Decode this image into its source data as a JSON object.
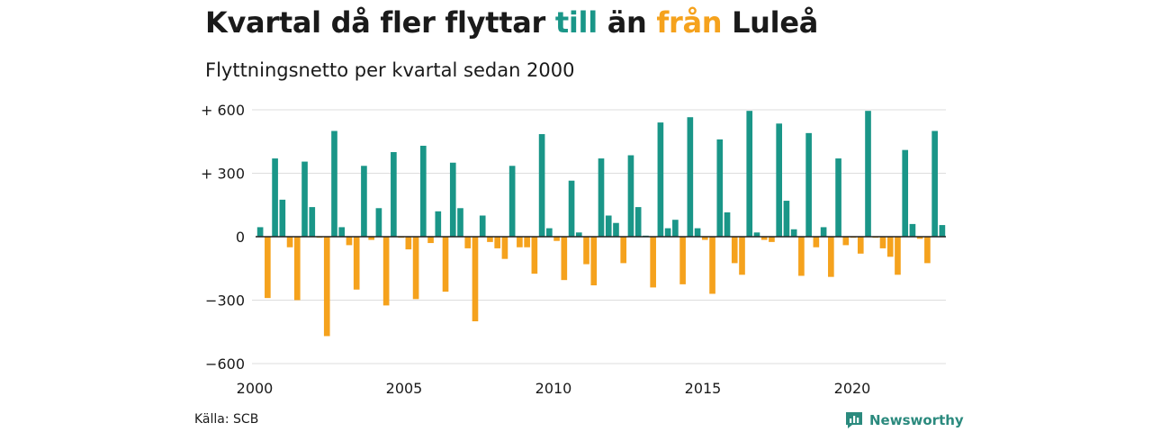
{
  "title": {
    "part1": "Kvartal då fler flyttar ",
    "word_in": "till",
    "part2": " än ",
    "word_out": "från",
    "part3": " Luleå"
  },
  "subtitle": "Flyttningsnetto per kvartal sedan 2000",
  "source": "Källa: SCB",
  "brand": {
    "label": "Newsworthy",
    "icon": "newsworthy-logo-icon"
  },
  "colors": {
    "positive": "#1a9688",
    "negative": "#f5a21d",
    "grid": "#dddddd",
    "zero_line": "#222222"
  },
  "chart_data": {
    "type": "bar",
    "title": "Kvartal då fler flyttar till än från Luleå",
    "subtitle": "Flyttningsnetto per kvartal sedan 2000",
    "xlabel": "",
    "ylabel": "",
    "ylim": [
      -650,
      620
    ],
    "x_ticks": [
      2000,
      2005,
      2010,
      2015,
      2020
    ],
    "y_ticks": [
      600,
      300,
      0,
      -300,
      -600
    ],
    "y_tick_labels": [
      "+ 600",
      "+ 300",
      "0",
      "−300",
      "−600"
    ],
    "grid": true,
    "categories": [
      "2000 Q1",
      "2000 Q2",
      "2000 Q3",
      "2000 Q4",
      "2001 Q1",
      "2001 Q2",
      "2001 Q3",
      "2001 Q4",
      "2002 Q1",
      "2002 Q2",
      "2002 Q3",
      "2002 Q4",
      "2003 Q1",
      "2003 Q2",
      "2003 Q3",
      "2003 Q4",
      "2004 Q1",
      "2004 Q2",
      "2004 Q3",
      "2004 Q4",
      "2005 Q1",
      "2005 Q2",
      "2005 Q3",
      "2005 Q4",
      "2006 Q1",
      "2006 Q2",
      "2006 Q3",
      "2006 Q4",
      "2007 Q1",
      "2007 Q2",
      "2007 Q3",
      "2007 Q4",
      "2008 Q1",
      "2008 Q2",
      "2008 Q3",
      "2008 Q4",
      "2009 Q1",
      "2009 Q2",
      "2009 Q3",
      "2009 Q4",
      "2010 Q1",
      "2010 Q2",
      "2010 Q3",
      "2010 Q4",
      "2011 Q1",
      "2011 Q2",
      "2011 Q3",
      "2011 Q4",
      "2012 Q1",
      "2012 Q2",
      "2012 Q3",
      "2012 Q4",
      "2013 Q1",
      "2013 Q2",
      "2013 Q3",
      "2013 Q4",
      "2014 Q1",
      "2014 Q2",
      "2014 Q3",
      "2014 Q4",
      "2015 Q1",
      "2015 Q2",
      "2015 Q3",
      "2015 Q4",
      "2016 Q1",
      "2016 Q2",
      "2016 Q3",
      "2016 Q4",
      "2017 Q1",
      "2017 Q2",
      "2017 Q3",
      "2017 Q4",
      "2018 Q1",
      "2018 Q2",
      "2018 Q3",
      "2018 Q4",
      "2019 Q1",
      "2019 Q2",
      "2019 Q3",
      "2019 Q4",
      "2020 Q1",
      "2020 Q2",
      "2020 Q3",
      "2020 Q4",
      "2021 Q1",
      "2021 Q2",
      "2021 Q3",
      "2021 Q4",
      "2022 Q1",
      "2022 Q2",
      "2022 Q3",
      "2022 Q4",
      "2023 Q1"
    ],
    "values": [
      45,
      -290,
      370,
      175,
      -50,
      -300,
      355,
      140,
      -5,
      -470,
      500,
      45,
      -40,
      -250,
      335,
      -15,
      135,
      -325,
      400,
      -5,
      -60,
      -295,
      430,
      -30,
      120,
      -260,
      350,
      135,
      -55,
      -400,
      100,
      -25,
      -55,
      -105,
      335,
      -50,
      -50,
      -175,
      485,
      40,
      -20,
      -205,
      265,
      20,
      -130,
      -230,
      370,
      100,
      65,
      -125,
      385,
      140,
      5,
      -240,
      540,
      40,
      80,
      -225,
      565,
      40,
      -15,
      -270,
      460,
      115,
      -125,
      -180,
      595,
      20,
      -15,
      -25,
      535,
      170,
      35,
      -185,
      490,
      -50,
      45,
      -190,
      370,
      -40,
      -5,
      -80,
      595,
      -5,
      -55,
      -95,
      -180,
      410,
      60,
      -10,
      -125,
      500,
      55
    ]
  }
}
